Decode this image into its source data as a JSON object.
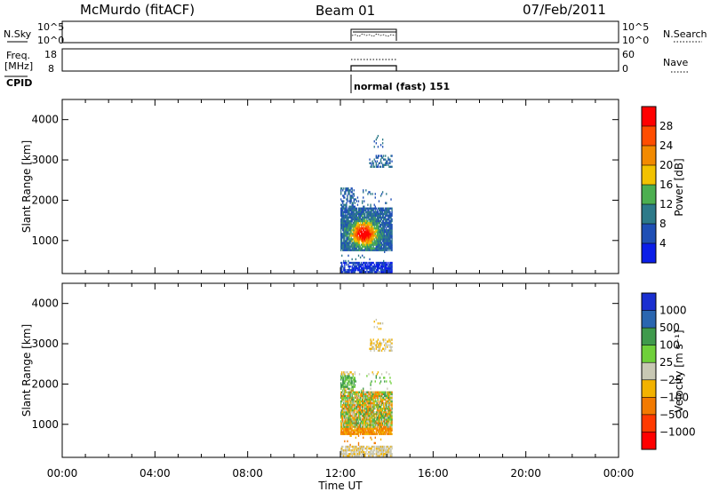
{
  "header": {
    "station": "McMurdo (fitACF)",
    "beam": "Beam 01",
    "date": "07/Feb/2011"
  },
  "params": {
    "nsky_label": "N.Sky",
    "nsearch_label": "N.Search",
    "noise_ticks": [
      "10^5",
      "10^0"
    ],
    "freq_label_line1": "Freq.",
    "freq_label_line2": "[MHz]",
    "freq_ticks": [
      "18",
      "8"
    ],
    "nave_label": "Nave",
    "nave_ticks": [
      "60",
      "0"
    ],
    "cpid_label": "CPID",
    "cpid_value": "normal (fast) 151"
  },
  "chart_data": [
    {
      "type": "heatmap",
      "name": "power",
      "ylabel": "Slant Range [km]",
      "xlabel": "",
      "xlim": [
        0,
        24
      ],
      "ylim": [
        180,
        4500
      ],
      "yticks": [
        "1000",
        "2000",
        "3000",
        "4000"
      ],
      "colorbar": {
        "label": "Power [dB]",
        "ticks": [
          "4",
          "8",
          "12",
          "16",
          "20",
          "24",
          "28"
        ],
        "colors": [
          "#0b1ee8",
          "#1f4fb5",
          "#2d7a89",
          "#4caf50",
          "#f2c200",
          "#f28a00",
          "#ff4d00",
          "#ff0000"
        ]
      },
      "data_extent": {
        "time_start": 12.0,
        "time_end": 14.2
      }
    },
    {
      "type": "heatmap",
      "name": "velocity",
      "ylabel": "Slant Range [km]",
      "xlabel": "Time UT",
      "xlim": [
        0,
        24
      ],
      "ylim": [
        180,
        4500
      ],
      "yticks": [
        "1000",
        "2000",
        "3000",
        "4000"
      ],
      "xticks": [
        "00:00",
        "04:00",
        "08:00",
        "12:00",
        "16:00",
        "20:00",
        "00:00"
      ],
      "colorbar": {
        "label": "Velocity [m s⁻¹]",
        "ticks": [
          "1000",
          "500",
          "100",
          "25",
          "−25",
          "−100",
          "−500",
          "−1000"
        ],
        "colors": [
          "#1a2fd0",
          "#2a66b0",
          "#3f9a4c",
          "#6fd03a",
          "#c8c8b4",
          "#f2b200",
          "#f27a00",
          "#ff3a00",
          "#ff0000"
        ]
      },
      "data_extent": {
        "time_start": 12.0,
        "time_end": 14.2
      }
    }
  ]
}
